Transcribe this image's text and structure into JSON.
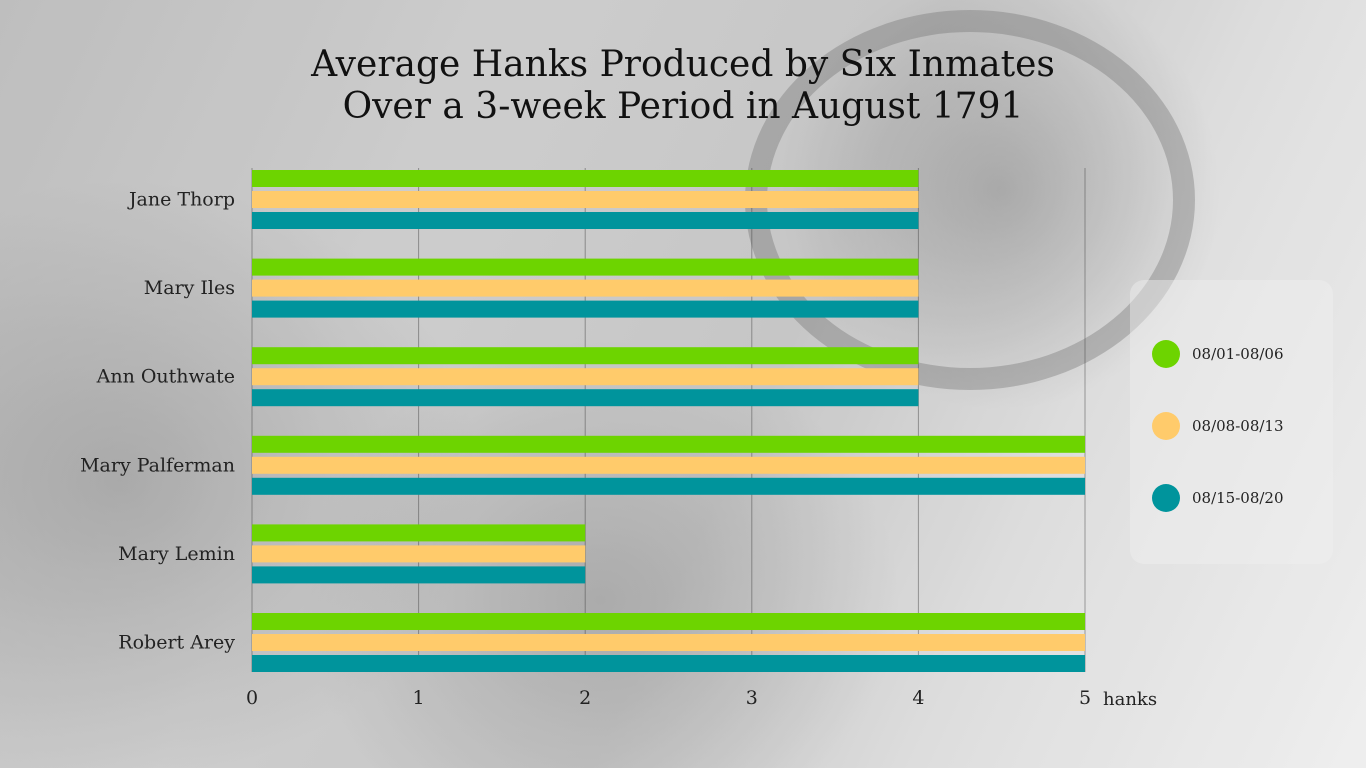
{
  "chart_data": {
    "type": "bar",
    "orientation": "horizontal",
    "title": [
      "Average Hanks Produced by Six Inmates",
      "Over a 3-week Period in August 1791"
    ],
    "xlabel": "hanks",
    "ylabel": "",
    "xlim": [
      0,
      5
    ],
    "xticks": [
      "0",
      "1",
      "2",
      "3",
      "4",
      "5"
    ],
    "grid": true,
    "legend_position": "right",
    "categories": [
      "Jane Thorp",
      "Mary Iles",
      "Ann Outhwate",
      "Mary Palferman",
      "Mary Lemin",
      "Robert Arey"
    ],
    "series": [
      {
        "name": "08/01-08/06",
        "color": "#6DD400",
        "values": [
          4,
          4,
          4,
          5,
          2,
          5
        ]
      },
      {
        "name": "08/08-08/13",
        "color": "#FFCB6B",
        "values": [
          4,
          4,
          4,
          5,
          2,
          5
        ]
      },
      {
        "name": "08/15-08/20",
        "color": "#00949C",
        "values": [
          4,
          4,
          4,
          5,
          2,
          5
        ]
      }
    ]
  }
}
